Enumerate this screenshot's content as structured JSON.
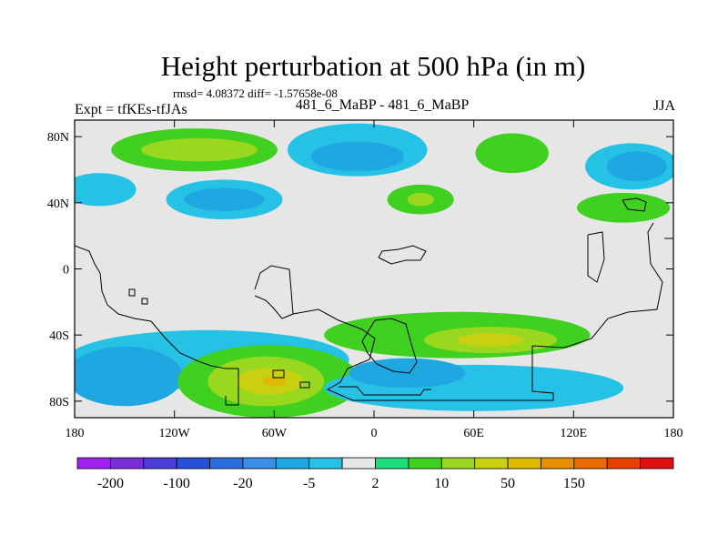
{
  "chart_data": {
    "type": "heatmap",
    "title": "Height perturbation at 500 hPa (in m)",
    "stats_line": "rmsd= 4.08372 diff= -1.57658e-08",
    "left_label": "Expt = tfKEs-tfJAs",
    "center_label": "481_6_MaBP - 481_6_MaBP",
    "right_label": "JJA",
    "xaxis": {
      "range": [
        -180,
        180
      ],
      "ticks": [
        {
          "value": -180,
          "label": "180"
        },
        {
          "value": -120,
          "label": "120W"
        },
        {
          "value": -60,
          "label": "60W"
        },
        {
          "value": 0,
          "label": "0"
        },
        {
          "value": 60,
          "label": "60E"
        },
        {
          "value": 120,
          "label": "120E"
        },
        {
          "value": 180,
          "label": "180"
        }
      ]
    },
    "yaxis": {
      "range": [
        -90,
        90
      ],
      "ticks": [
        {
          "value": 80,
          "label": "80N"
        },
        {
          "value": 40,
          "label": "40N"
        },
        {
          "value": 0,
          "label": "0"
        },
        {
          "value": -40,
          "label": "40S"
        },
        {
          "value": -80,
          "label": "80S"
        }
      ]
    },
    "colorbar": {
      "colors": [
        "#a020f0",
        "#7a2ed6",
        "#4b3bd9",
        "#2850d8",
        "#2b6ee0",
        "#3a8ee6",
        "#1ea7e0",
        "#26c2e6",
        "#e6e6e6",
        "#1ddc7a",
        "#40d020",
        "#9ad820",
        "#c8d010",
        "#e0b800",
        "#e89000",
        "#e86a00",
        "#e84000",
        "#e01010"
      ],
      "labels": [
        {
          "index": 1,
          "text": "-200"
        },
        {
          "index": 3,
          "text": "-100"
        },
        {
          "index": 5,
          "text": "-20"
        },
        {
          "index": 7,
          "text": "-5"
        },
        {
          "index": 9,
          "text": "2"
        },
        {
          "index": 11,
          "text": "10"
        },
        {
          "index": 13,
          "text": "50"
        },
        {
          "index": 15,
          "text": "150"
        }
      ]
    },
    "anomaly_regions": [
      {
        "name": "north-pacific-west",
        "lon": -165,
        "lat": 48,
        "rx": 22,
        "ry": 10,
        "level": 7
      },
      {
        "name": "north-pacific-high",
        "lon": -108,
        "lat": 72,
        "rx": 50,
        "ry": 13,
        "level": 10
      },
      {
        "name": "north-pacific-high-core",
        "lon": -105,
        "lat": 72,
        "rx": 35,
        "ry": 7,
        "level": 11
      },
      {
        "name": "north-america-low",
        "lon": -90,
        "lat": 42,
        "rx": 35,
        "ry": 12,
        "level": 7
      },
      {
        "name": "north-america-low-core",
        "lon": -90,
        "lat": 42,
        "rx": 24,
        "ry": 7,
        "level": 6
      },
      {
        "name": "atlantic-low",
        "lon": -10,
        "lat": 72,
        "rx": 42,
        "ry": 16,
        "level": 7
      },
      {
        "name": "atlantic-low-core",
        "lon": -10,
        "lat": 68,
        "rx": 28,
        "ry": 9,
        "level": 6
      },
      {
        "name": "europe-high",
        "lon": 28,
        "lat": 42,
        "rx": 20,
        "ry": 9,
        "level": 10
      },
      {
        "name": "europe-high-core",
        "lon": 28,
        "lat": 42,
        "rx": 8,
        "ry": 4,
        "level": 11
      },
      {
        "name": "asia-high",
        "lon": 83,
        "lat": 70,
        "rx": 22,
        "ry": 12,
        "level": 10
      },
      {
        "name": "east-asia-low",
        "lon": 155,
        "lat": 62,
        "rx": 28,
        "ry": 14,
        "level": 7
      },
      {
        "name": "east-asia-low-core",
        "lon": 158,
        "lat": 62,
        "rx": 18,
        "ry": 9,
        "level": 6
      },
      {
        "name": "pacific-high",
        "lon": 150,
        "lat": 37,
        "rx": 28,
        "ry": 9,
        "level": 10
      },
      {
        "name": "southern-low-band",
        "lon": -100,
        "lat": -55,
        "rx": 85,
        "ry": 18,
        "level": 7
      },
      {
        "name": "southern-low-core",
        "lon": -150,
        "lat": -65,
        "rx": 35,
        "ry": 18,
        "level": 6
      },
      {
        "name": "southern-high",
        "lon": -63,
        "lat": -68,
        "rx": 55,
        "ry": 22,
        "level": 10
      },
      {
        "name": "southern-high-mid",
        "lon": -65,
        "lat": -68,
        "rx": 35,
        "ry": 15,
        "level": 11
      },
      {
        "name": "southern-high-core",
        "lon": -63,
        "lat": -68,
        "rx": 20,
        "ry": 8,
        "level": 12
      },
      {
        "name": "southern-high-peak",
        "lon": -60,
        "lat": -68,
        "rx": 7,
        "ry": 3,
        "level": 13
      },
      {
        "name": "indian-ocean-high",
        "lon": 50,
        "lat": -40,
        "rx": 80,
        "ry": 14,
        "level": 10
      },
      {
        "name": "indian-ocean-high-core",
        "lon": 70,
        "lat": -43,
        "rx": 40,
        "ry": 8,
        "level": 11
      },
      {
        "name": "indian-ocean-high-peak",
        "lon": 70,
        "lat": -43,
        "rx": 20,
        "ry": 4,
        "level": 12
      },
      {
        "name": "south-indian-low",
        "lon": 60,
        "lat": -72,
        "rx": 90,
        "ry": 14,
        "level": 7
      },
      {
        "name": "south-indian-low-core",
        "lon": 20,
        "lat": -63,
        "rx": 35,
        "ry": 9,
        "level": 6
      }
    ]
  }
}
